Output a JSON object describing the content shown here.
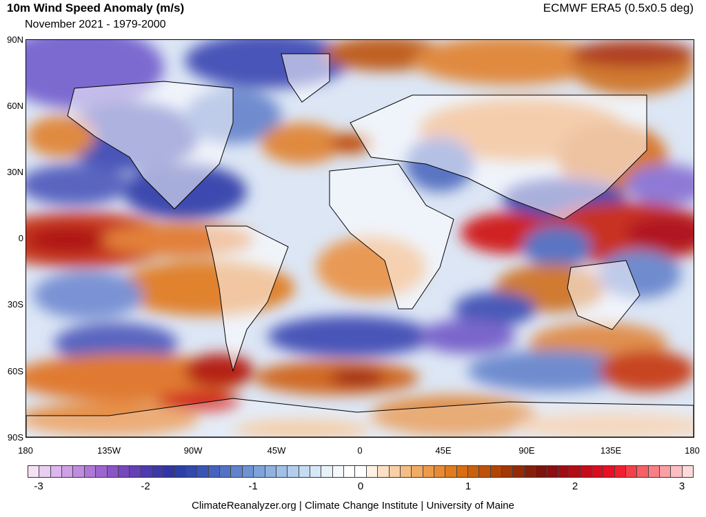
{
  "header": {
    "title": "10m Wind Speed Anomaly (m/s)",
    "subtitle": "November 2021 - 1979-2000",
    "source": "ECMWF ERA5 (0.5x0.5 deg)"
  },
  "map": {
    "lat_labels": [
      "90N",
      "60N",
      "30N",
      "0",
      "30S",
      "60S",
      "90S"
    ],
    "lon_labels": [
      "180",
      "135W",
      "90W",
      "45W",
      "0",
      "45E",
      "90E",
      "135E",
      "180"
    ]
  },
  "colorbar": {
    "labels": [
      "-3",
      "-2",
      "-1",
      "0",
      "1",
      "2",
      "3"
    ],
    "colors": [
      "#f5e1f6",
      "#eacdf0",
      "#dcb6ec",
      "#cfa0e6",
      "#c08ce0",
      "#af78d8",
      "#9d65cf",
      "#8a55c6",
      "#7647bd",
      "#6240b5",
      "#4e3bb0",
      "#3c38a8",
      "#2f36a3",
      "#2c3fa8",
      "#3148af",
      "#3a55b6",
      "#4563bd",
      "#5273c4",
      "#6083cc",
      "#6e93d3",
      "#7ea3da",
      "#8fb2e0",
      "#a0c0e6",
      "#b2ceec",
      "#c4dbf1",
      "#d6e7f6",
      "#e7f1fa",
      "#f4f8fc",
      "#ffffff",
      "#ffffff",
      "#fdf0e4",
      "#fbe0c6",
      "#f8cfa6",
      "#f5bd86",
      "#f2ab66",
      "#ee9a4b",
      "#e98a33",
      "#e27b20",
      "#d86d14",
      "#cc5f0d",
      "#bf520a",
      "#b14408",
      "#a13706",
      "#922b06",
      "#842008",
      "#7d150d",
      "#8a0f12",
      "#9e0d14",
      "#b20c17",
      "#c50c1b",
      "#d80d1f",
      "#e81024",
      "#f2202e",
      "#f4404a",
      "#f66066",
      "#f88084",
      "#fa9fa3",
      "#fcbfc1",
      "#fdd9db"
    ]
  },
  "footer": {
    "text": "ClimateReanalyzer.org | Climate Change Institute | University of Maine"
  }
}
